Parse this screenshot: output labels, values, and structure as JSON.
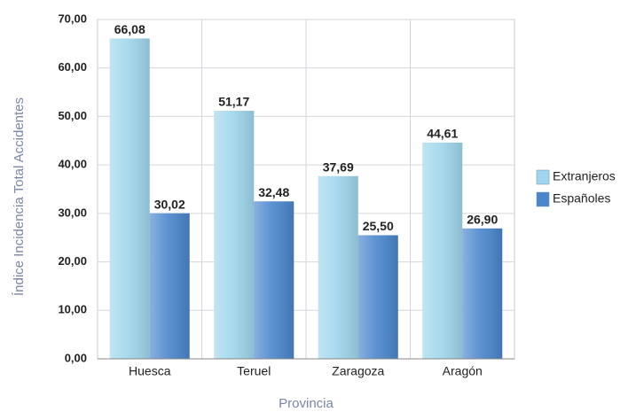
{
  "chart_data": {
    "type": "bar",
    "categories": [
      "Huesca",
      "Teruel",
      "Zaragoza",
      "Aragón"
    ],
    "series": [
      {
        "name": "Extranjeros",
        "color": "#9fd6ec",
        "values": [
          66.08,
          51.17,
          37.69,
          44.61
        ],
        "value_labels": [
          "66,08",
          "51,17",
          "37,69",
          "44,61"
        ]
      },
      {
        "name": "Españoles",
        "color": "#4a86cc",
        "values": [
          30.02,
          32.48,
          25.5,
          26.9
        ],
        "value_labels": [
          "30,02",
          "32,48",
          "25,50",
          "26,90"
        ]
      }
    ],
    "ylabel": "Índice Incidencia Total Accidentes",
    "xlabel": "Provincia",
    "ylim": [
      0,
      70
    ],
    "yticks": [
      {
        "value": 0,
        "label": "0,00"
      },
      {
        "value": 10,
        "label": "10,00"
      },
      {
        "value": 20,
        "label": "20,00"
      },
      {
        "value": 30,
        "label": "30,00"
      },
      {
        "value": 40,
        "label": "40,00"
      },
      {
        "value": 50,
        "label": "50,00"
      },
      {
        "value": 60,
        "label": "60,00"
      },
      {
        "value": 70,
        "label": "70,00"
      }
    ],
    "grid": true,
    "legend": "right"
  }
}
